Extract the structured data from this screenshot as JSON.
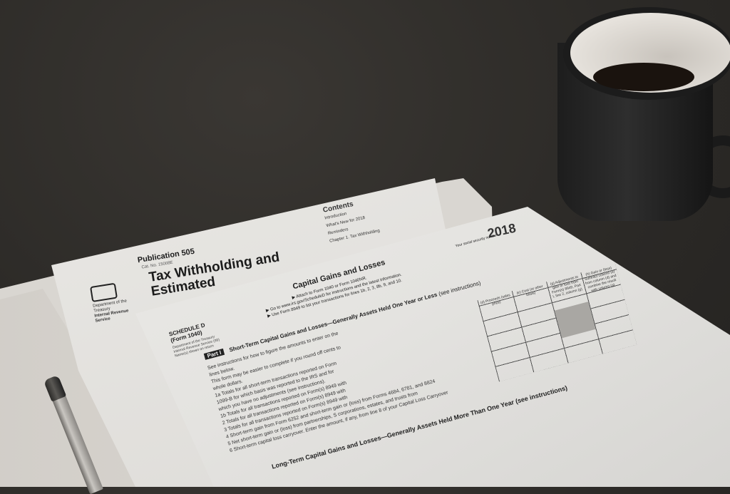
{
  "publication": {
    "number": "Publication 505",
    "cat_no": "Cat. No. 15008E",
    "title": "Tax Withholding and Estimated",
    "agency": [
      "Department of the Treasury",
      "Internal Revenue Service"
    ],
    "contents": {
      "heading": "Contents",
      "items": [
        "Introduction",
        "What's New for 2018",
        "Reminders",
        "Chapter 1. Tax Withholding"
      ]
    }
  },
  "schedule_d": {
    "schedule": "SCHEDULE D",
    "form": "(Form 1040)",
    "dept": "Department of the Treasury",
    "irs": "Internal Revenue Service (99)",
    "names": "Name(s) shown on return",
    "title": "Capital Gains and Losses",
    "instructions": [
      "▶ Attach to Form 1040 or Form 1040NR.",
      "▶ Go to www.irs.gov/ScheduleD for instructions and the latest information.",
      "▶ Use Form 8949 to list your transactions for lines 1b, 2, 3, 8b, 9, and 10."
    ],
    "year": "2018",
    "ssn_label": "Your social security number",
    "part1_badge": "Part I",
    "part1_heading": "Short-Term Capital Gains and Losses—Generally Assets Held One Year or Less",
    "part1_note": "(see instructions)",
    "columns": [
      "(d) Proceeds (sales price)",
      "(e) Cost (or other basis)",
      "(g) Adjustments to gain or loss from Form(s) 8949, Part I, line 2, column (g)",
      "(h) Gain or (loss) Subtract column (e) from column (d) and combine the result with column (g)"
    ],
    "body_lines": [
      "See instructions for how to figure the amounts to enter on the",
      "lines below.",
      "This form may be easier to complete if you round off cents to",
      "whole dollars.",
      "1a Totals for all short-term transactions reported on Form",
      "1099-B for which basis was reported to the IRS and for",
      "which you have no adjustments (see instructions).",
      "1b Totals for all transactions reported on Form(s) 8949 with",
      "2 Totals for all transactions reported on Form(s) 8949 with",
      "3 Totals for all transactions reported on Form(s) 8949 with",
      "4 Short-term gain from Form 6252 and short-term gain or (loss) from Forms 4684, 6781, and 8824",
      "5 Net short-term gain or (loss) from partnerships, S corporations, estates, and trusts from",
      "6 Short-term capital loss carryover. Enter the amount, if any, from line 8 of your Capital Loss Carryover"
    ],
    "part2_heading": "Long-Term Capital Gains and Losses—Generally Assets Held More Than One Year (see instructions)"
  },
  "colors": {
    "table": "#1c1c1c",
    "paper": "#ecebe8",
    "mug": "#1d1d1d",
    "coffee": "#1a130e"
  }
}
